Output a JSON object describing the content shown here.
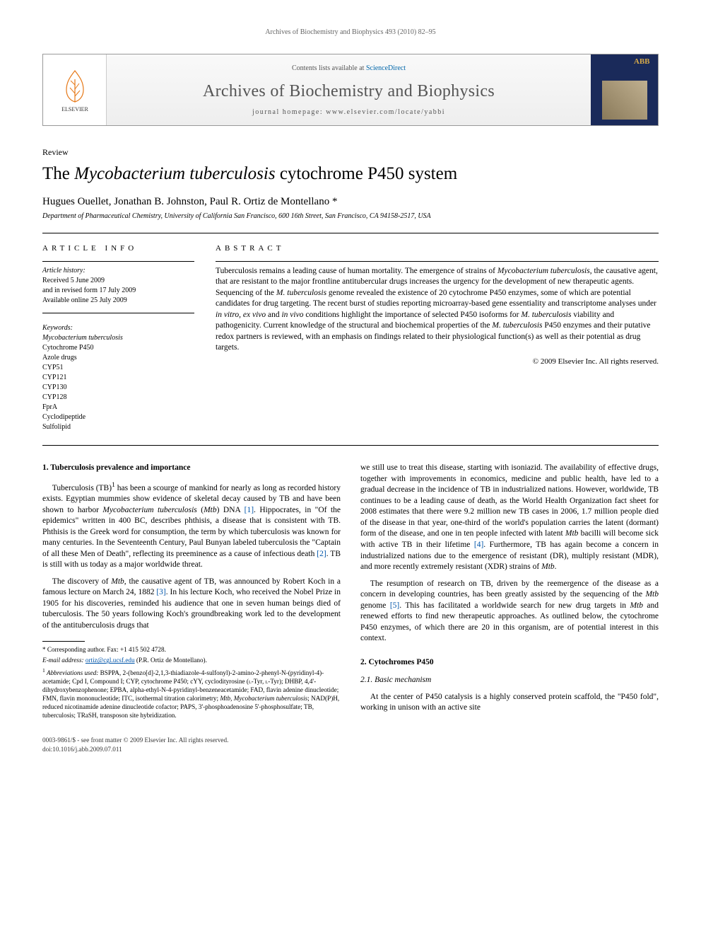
{
  "running_header": "Archives of Biochemistry and Biophysics 493 (2010) 82–95",
  "masthead": {
    "contents_prefix": "Contents lists available at ",
    "contents_link": "ScienceDirect",
    "journal_name": "Archives of Biochemistry and Biophysics",
    "homepage_prefix": "journal homepage: ",
    "homepage_url": "www.elsevier.com/locate/yabbi",
    "cover_label": "ABB"
  },
  "article_type": "Review",
  "title_pre": "The ",
  "title_italic": "Mycobacterium tuberculosis",
  "title_post": " cytochrome P450 system",
  "authors": "Hugues Ouellet, Jonathan B. Johnston, Paul R. Ortiz de Montellano *",
  "affiliation": "Department of Pharmaceutical Chemistry, University of California San Francisco, 600 16th Street, San Francisco, CA 94158-2517, USA",
  "info": {
    "heading": "ARTICLE INFO",
    "history_label": "Article history:",
    "received": "Received 5 June 2009",
    "revised": "and in revised form 17 July 2009",
    "online": "Available online 25 July 2009",
    "keywords_label": "Keywords:",
    "keywords": [
      {
        "t": "Mycobacterium tuberculosis",
        "it": true
      },
      {
        "t": "Cytochrome P450",
        "it": false
      },
      {
        "t": "Azole drugs",
        "it": false
      },
      {
        "t": "CYP51",
        "it": false
      },
      {
        "t": "CYP121",
        "it": false
      },
      {
        "t": "CYP130",
        "it": false
      },
      {
        "t": "CYP128",
        "it": false
      },
      {
        "t": "FprA",
        "it": false
      },
      {
        "t": "Cyclodipeptide",
        "it": false
      },
      {
        "t": "Sulfolipid",
        "it": false
      }
    ]
  },
  "abstract": {
    "heading": "ABSTRACT",
    "s1": "Tuberculosis remains a leading cause of human mortality. The emergence of strains of ",
    "s2": "Mycobacterium tuberculosis",
    "s3": ", the causative agent, that are resistant to the major frontline antitubercular drugs increases the urgency for the development of new therapeutic agents. Sequencing of the ",
    "s4": "M. tuberculosis",
    "s5": " genome revealed the existence of 20 cytochrome P450 enzymes, some of which are potential candidates for drug targeting. The recent burst of studies reporting microarray-based gene essentiality and transcriptome analyses under ",
    "s6": "in vitro",
    "s7": ", ",
    "s8": "ex vivo",
    "s9": " and ",
    "s10": "in vivo",
    "s11": " conditions highlight the importance of selected P450 isoforms for ",
    "s12": "M. tuberculosis",
    "s13": " viability and pathogenicity. Current knowledge of the structural and biochemical properties of the ",
    "s14": "M. tuberculosis",
    "s15": " P450 enzymes and their putative redox partners is reviewed, with an emphasis on findings related to their physiological function(s) as well as their potential as drug targets.",
    "copyright": "© 2009 Elsevier Inc. All rights reserved."
  },
  "sections": {
    "s1_heading": "1. Tuberculosis prevalence and importance",
    "s1_p1_a": "Tuberculosis (TB)",
    "s1_p1_sup": "1",
    "s1_p1_b": " has been a scourge of mankind for nearly as long as recorded history exists. Egyptian mummies show evidence of skeletal decay caused by TB and have been shown to harbor ",
    "s1_p1_c": "Mycobacterium tuberculosis",
    "s1_p1_d": " (",
    "s1_p1_e": "Mtb",
    "s1_p1_f": ") DNA ",
    "s1_p1_ref1": "[1]",
    "s1_p1_g": ". Hippocrates, in \"Of the epidemics\" written in 400 BC, describes phthisis, a disease that is consistent with TB. Phthisis is the Greek word for consumption, the term by which tuberculosis was known for many centuries. In the Seventeenth Century, Paul Bunyan labeled tuberculosis the \"Captain of all these Men of Death\", reflecting its preeminence as a cause of infectious death ",
    "s1_p1_ref2": "[2]",
    "s1_p1_h": ". TB is still with us today as a major worldwide threat.",
    "s1_p2_a": "The discovery of ",
    "s1_p2_b": "Mtb",
    "s1_p2_c": ", the causative agent of TB, was announced by Robert Koch in a famous lecture on March 24, 1882 ",
    "s1_p2_ref3": "[3]",
    "s1_p2_d": ". In his lecture Koch, who received the Nobel Prize in 1905 for his discoveries, reminded his audience that one in seven human beings died of tuberculosis. The 50 years following Koch's groundbreaking work led to the development of the antituberculosis drugs that",
    "col2_p1_a": "we still use to treat this disease, starting with isoniazid. The availability of effective drugs, together with improvements in economics, medicine and public health, have led to a gradual decrease in the incidence of TB in industrialized nations. However, worldwide, TB continues to be a leading cause of death, as the World Health Organization fact sheet for 2008 estimates that there were 9.2 million new TB cases in 2006, 1.7 million people died of the disease in that year, one-third of the world's population carries the latent (dormant) form of the disease, and one in ten people infected with latent ",
    "col2_p1_b": "Mtb",
    "col2_p1_c": " bacilli will become sick with active TB in their lifetime ",
    "col2_p1_ref4": "[4]",
    "col2_p1_d": ". Furthermore, TB has again become a concern in industrialized nations due to the emergence of resistant (DR), multiply resistant (MDR), and more recently extremely resistant (XDR) strains of ",
    "col2_p1_e": "Mtb",
    "col2_p1_f": ".",
    "col2_p2_a": "The resumption of research on TB, driven by the reemergence of the disease as a concern in developing countries, has been greatly assisted by the sequencing of the ",
    "col2_p2_b": "Mtb",
    "col2_p2_c": " genome ",
    "col2_p2_ref5": "[5]",
    "col2_p2_d": ". This has facilitated a worldwide search for new drug targets in ",
    "col2_p2_e": "Mtb",
    "col2_p2_f": " and renewed efforts to find new therapeutic approaches. As outlined below, the cytochrome P450 enzymes, of which there are 20 in this organism, are of potential interest in this context.",
    "s2_heading": "2. Cytochromes P450",
    "s2_1_heading": "2.1. Basic mechanism",
    "s2_1_p1": "At the center of P450 catalysis is a highly conserved protein scaffold, the \"P450 fold\", working in unison with an active site"
  },
  "footnotes": {
    "corr": "* Corresponding author. Fax: +1 415 502 4728.",
    "email_label": "E-mail address: ",
    "email": "ortiz@cgl.ucsf.edu",
    "email_suffix": " (P.R. Ortiz de Montellano).",
    "abbrev_sup": "1",
    "abbrev_label": " Abbreviations used:",
    "abbrev_text_a": " BSPPA, 2-(benzo[d]-2,1,3-thiadiazole-4-sulfonyl)-2-amino-2-phenyl-N-(pyridinyl-4)-acetamide; Cpd I, Compound I; CYP, cytochrome P450; cYY, cyclodityrosine (",
    "abbrev_text_b": "l",
    "abbrev_text_c": "-Tyr, ",
    "abbrev_text_d": "l",
    "abbrev_text_e": "-Tyr); DHBP, 4,4'-dihydroxybenzophenone; EPBA, alpha-ethyl-N-4-pyridinyl-benzeneacetamide; FAD, flavin adenine dinucleotide; FMN, flavin mononucleotide; ITC, isothermal titration calorimetry; ",
    "abbrev_text_f": "Mtb, Mycobacterium tuberculosis",
    "abbrev_text_g": "; NAD(P)H, reduced nicotinamide adenine dinucleotide cofactor; PAPS, 3'-phosphoadenosine 5'-phosphosulfate; TB, tuberculosis; TRaSH, transposon site hybridization."
  },
  "pagefoot": {
    "line1": "0003-9861/$ - see front matter © 2009 Elsevier Inc. All rights reserved.",
    "line2": "doi:10.1016/j.abb.2009.07.011"
  },
  "colors": {
    "link": "#0055aa",
    "banner_text": "#555",
    "cover_bg": "#1a2a5a",
    "cover_gold": "#d4a84a"
  }
}
